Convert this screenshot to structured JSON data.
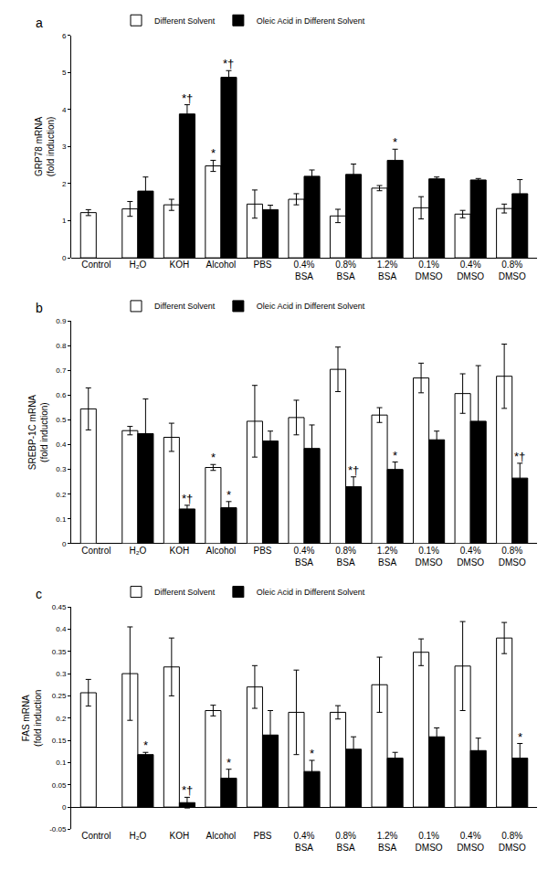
{
  "chart_data": [
    {
      "type": "bar",
      "title": "a",
      "y_label": "GRP78 mRNA (fold induction)",
      "categories": [
        "Control",
        "H₂O",
        "KOH",
        "Alcohol",
        "PBS",
        "0.4% BSA",
        "0.8% BSA",
        "1.2% BSA",
        "0.1% DMSO",
        "0.4% DMSO",
        "0.8% DMSO"
      ],
      "series": [
        {
          "name": "Different Solvent",
          "color": "#ffffff",
          "values": [
            1.22,
            1.32,
            1.43,
            2.48,
            1.45,
            1.58,
            1.13,
            1.88,
            1.35,
            1.18,
            1.33
          ],
          "errors": [
            0.08,
            0.2,
            0.15,
            0.15,
            0.38,
            0.15,
            0.18,
            0.07,
            0.3,
            0.1,
            0.12
          ]
        },
        {
          "name": "Oleic Acid in Different Solvent",
          "color": "#000000",
          "values": [
            null,
            1.8,
            3.88,
            4.87,
            1.3,
            2.2,
            2.25,
            2.63,
            2.13,
            2.1,
            1.73
          ],
          "errors": [
            null,
            0.38,
            0.25,
            0.18,
            0.12,
            0.17,
            0.28,
            0.3,
            0.05,
            0.04,
            0.38
          ]
        }
      ],
      "ylim": [
        0,
        6
      ],
      "yticks": [
        0,
        1,
        2,
        3,
        4,
        5,
        6
      ],
      "legend": "top left",
      "annotations": [
        {
          "category": "Alcohol",
          "series": "Different Solvent",
          "text": "*"
        },
        {
          "category": "KOH",
          "series": "Oleic Acid in Different Solvent",
          "text": "*†"
        },
        {
          "category": "Alcohol",
          "series": "Oleic Acid in Different Solvent",
          "text": "*†"
        },
        {
          "category": "1.2% BSA",
          "series": "Oleic Acid in Different Solvent",
          "text": "*"
        }
      ]
    },
    {
      "type": "bar",
      "title": "b",
      "y_label": "SREBP-1C mRNA (fold induction)",
      "categories": [
        "Control",
        "H₂O",
        "KOH",
        "Alcohol",
        "PBS",
        "0.4% BSA",
        "0.8% BSA",
        "1.2% BSA",
        "0.1% DMSO",
        "0.4% DMSO",
        "0.8% DMSO"
      ],
      "series": [
        {
          "name": "Different Solvent",
          "color": "#ffffff",
          "values": [
            0.545,
            0.457,
            0.43,
            0.308,
            0.495,
            0.51,
            0.705,
            0.52,
            0.67,
            0.607,
            0.677
          ],
          "errors": [
            0.085,
            0.017,
            0.057,
            0.012,
            0.145,
            0.07,
            0.09,
            0.03,
            0.06,
            0.08,
            0.13
          ]
        },
        {
          "name": "Oleic Acid in Different Solvent",
          "color": "#000000",
          "values": [
            null,
            0.445,
            0.14,
            0.145,
            0.415,
            0.385,
            0.23,
            0.3,
            0.42,
            0.495,
            0.265
          ],
          "errors": [
            null,
            0.14,
            0.015,
            0.025,
            0.04,
            0.095,
            0.04,
            0.03,
            0.035,
            0.225,
            0.06
          ]
        }
      ],
      "ylim": [
        0,
        0.9
      ],
      "yticks": [
        0,
        0.1,
        0.2,
        0.3,
        0.4,
        0.5,
        0.6,
        0.7,
        0.8,
        0.9
      ],
      "legend": "top left",
      "annotations": [
        {
          "category": "Alcohol",
          "series": "Different Solvent",
          "text": "*"
        },
        {
          "category": "KOH",
          "series": "Oleic Acid in Different Solvent",
          "text": "*†"
        },
        {
          "category": "Alcohol",
          "series": "Oleic Acid in Different Solvent",
          "text": "*"
        },
        {
          "category": "0.8% BSA",
          "series": "Oleic Acid in Different Solvent",
          "text": "*†"
        },
        {
          "category": "1.2% BSA",
          "series": "Oleic Acid in Different Solvent",
          "text": "*"
        },
        {
          "category": "0.8% DMSO",
          "series": "Oleic Acid in Different Solvent",
          "text": "*†"
        }
      ]
    },
    {
      "type": "bar",
      "title": "c",
      "y_label": "FAS mRNA (fold induction",
      "categories": [
        "Control",
        "H₂O",
        "KOH",
        "Alcohol",
        "PBS",
        "0.4% BSA",
        "0.8% BSA",
        "1.2% BSA",
        "0.1% DMSO",
        "0.4% DMSO",
        "0.8% DMSO"
      ],
      "series": [
        {
          "name": "Different Solvent",
          "color": "#ffffff",
          "values": [
            0.257,
            0.3,
            0.315,
            0.217,
            0.27,
            0.213,
            0.213,
            0.275,
            0.348,
            0.317,
            0.38
          ],
          "errors": [
            0.03,
            0.105,
            0.065,
            0.012,
            0.048,
            0.095,
            0.015,
            0.062,
            0.03,
            0.1,
            0.035
          ]
        },
        {
          "name": "Oleic Acid in Different Solvent",
          "color": "#000000",
          "values": [
            null,
            0.118,
            0.01,
            0.065,
            0.162,
            0.08,
            0.13,
            0.11,
            0.158,
            0.127,
            0.11
          ],
          "errors": [
            null,
            0.005,
            0.012,
            0.02,
            0.055,
            0.025,
            0.028,
            0.013,
            0.02,
            0.028,
            0.033
          ]
        }
      ],
      "ylim": [
        -0.05,
        0.45
      ],
      "yticks": [
        -0.05,
        0,
        0.05,
        0.1,
        0.15,
        0.2,
        0.25,
        0.3,
        0.35,
        0.4,
        0.45
      ],
      "legend": "top left",
      "annotations": [
        {
          "category": "H₂O",
          "series": "Oleic Acid in Different Solvent",
          "text": "*"
        },
        {
          "category": "KOH",
          "series": "Oleic Acid in Different Solvent",
          "text": "*†"
        },
        {
          "category": "Alcohol",
          "series": "Oleic Acid in Different Solvent",
          "text": "*"
        },
        {
          "category": "0.4% BSA",
          "series": "Oleic Acid in Different Solvent",
          "text": "*"
        },
        {
          "category": "0.8% DMSO",
          "series": "Oleic Acid in Different Solvent",
          "text": "*"
        }
      ]
    }
  ]
}
